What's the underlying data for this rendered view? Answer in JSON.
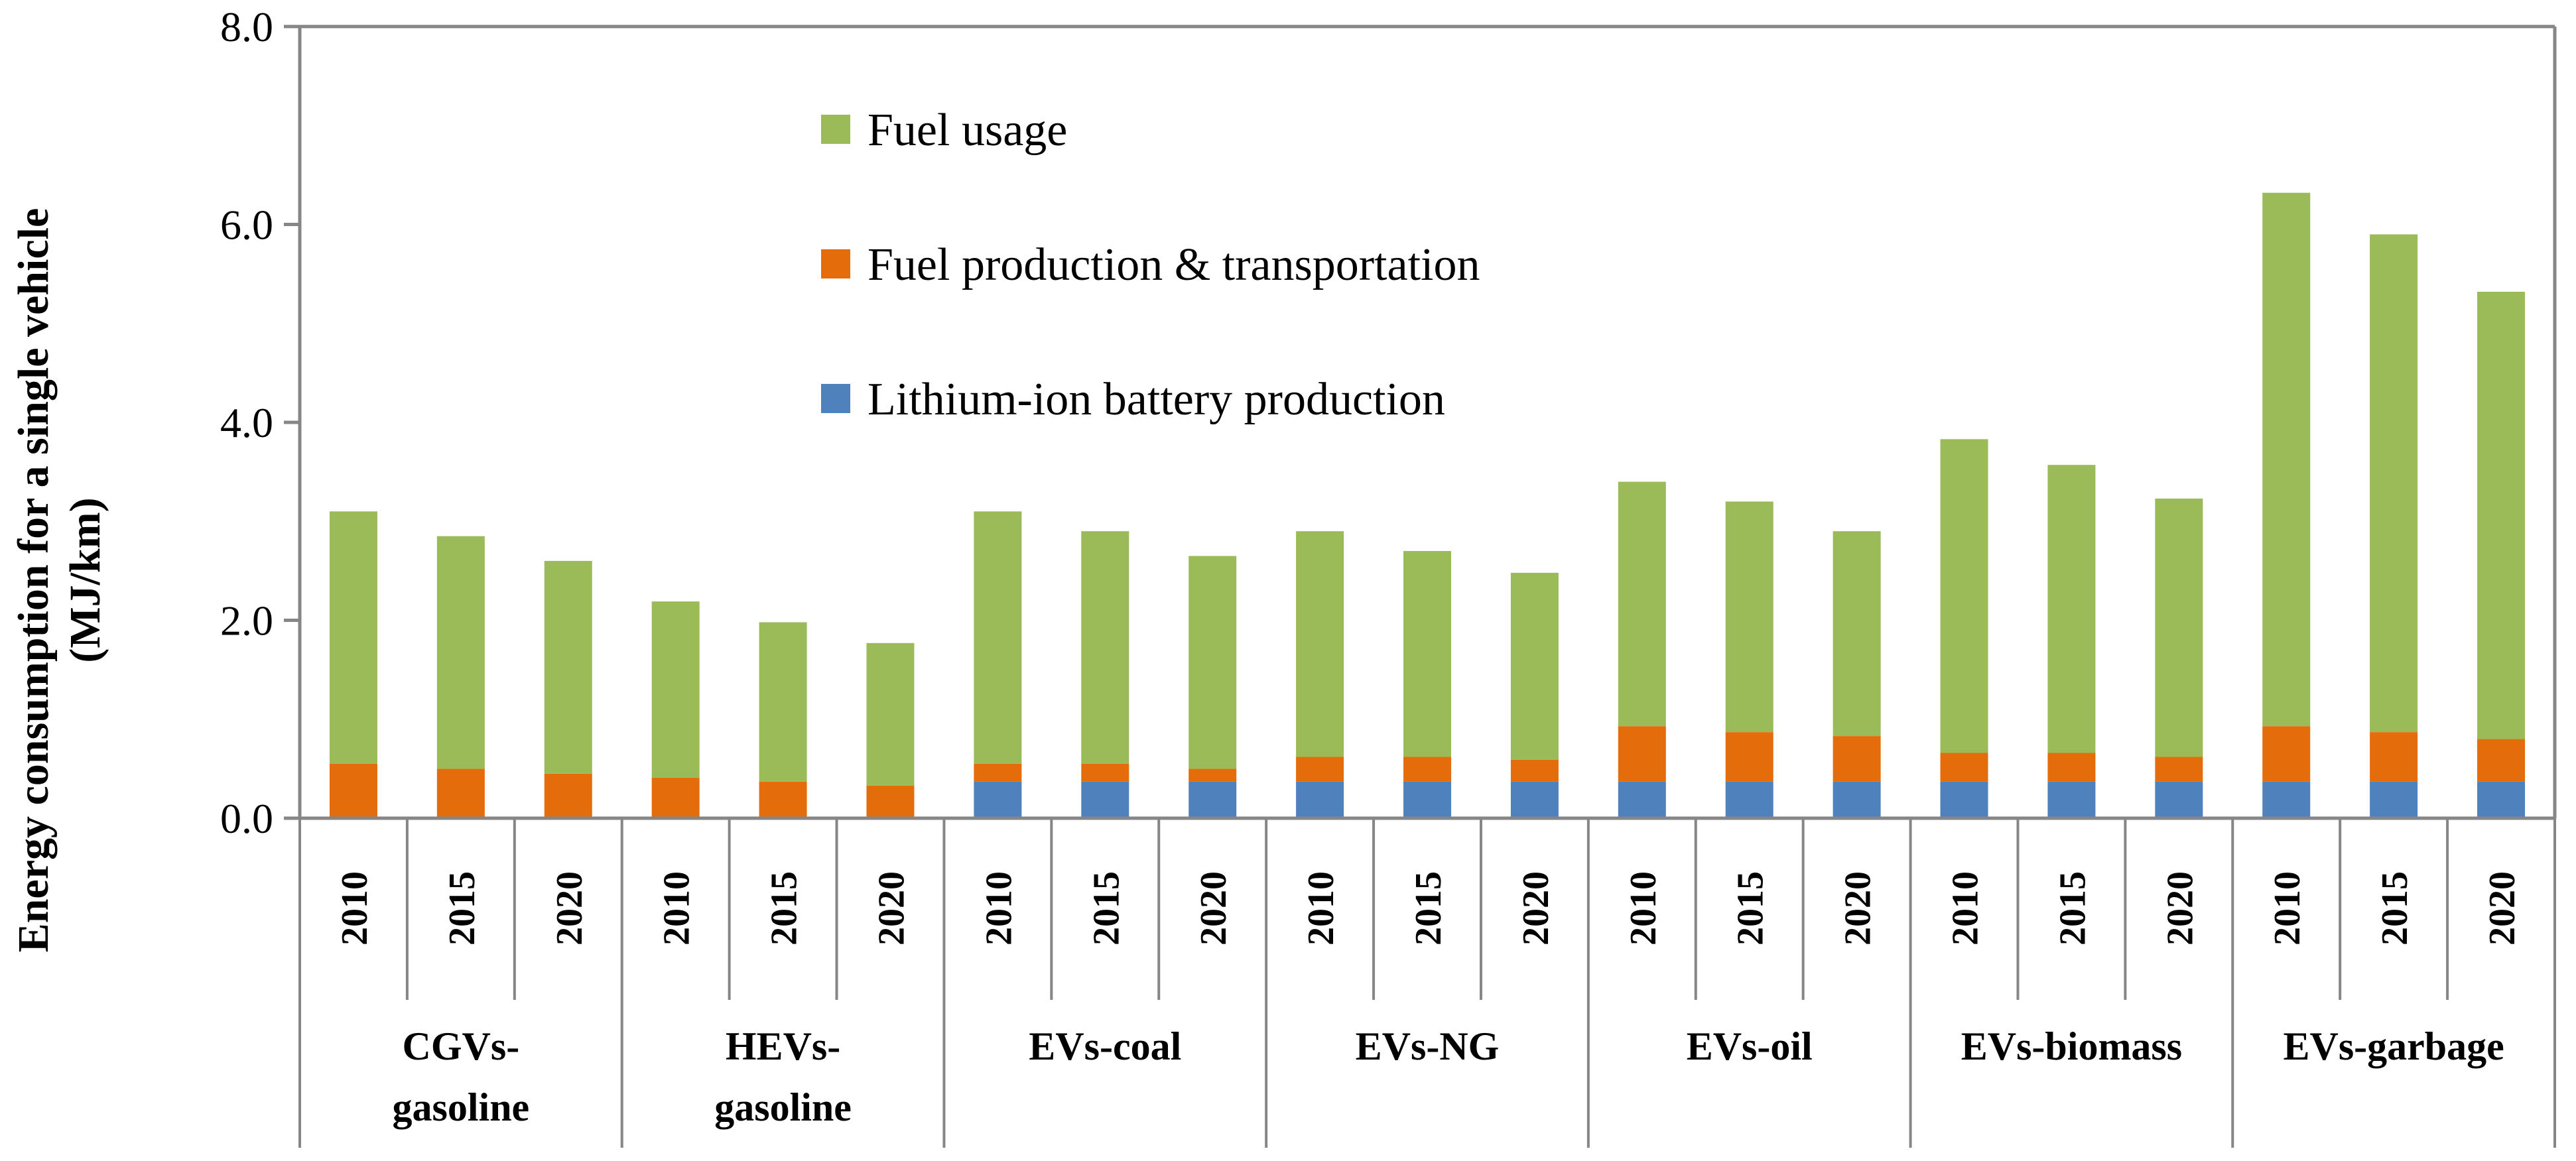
{
  "chart_data": {
    "type": "bar",
    "stacked": true,
    "ylabel": [
      "Energy consumption for a single vehicle",
      "(MJ/km)"
    ],
    "ylim": [
      0,
      8
    ],
    "yticks": [
      "0.0",
      "2.0",
      "4.0",
      "6.0",
      "8.0"
    ],
    "ytick_values": [
      0,
      2,
      4,
      6,
      8
    ],
    "legend_position": "top-center",
    "groups": [
      {
        "label": [
          "CGVs-",
          "gasoline"
        ],
        "years": [
          "2010",
          "2015",
          "2020"
        ]
      },
      {
        "label": [
          "HEVs-",
          "gasoline"
        ],
        "years": [
          "2010",
          "2015",
          "2020"
        ]
      },
      {
        "label": [
          "EVs-coal"
        ],
        "years": [
          "2010",
          "2015",
          "2020"
        ]
      },
      {
        "label": [
          "EVs-NG"
        ],
        "years": [
          "2010",
          "2015",
          "2020"
        ]
      },
      {
        "label": [
          "EVs-oil"
        ],
        "years": [
          "2010",
          "2015",
          "2020"
        ]
      },
      {
        "label": [
          "EVs-biomass"
        ],
        "years": [
          "2010",
          "2015",
          "2020"
        ]
      },
      {
        "label": [
          "EVs-garbage"
        ],
        "years": [
          "2010",
          "2015",
          "2020"
        ]
      }
    ],
    "series": [
      {
        "name": "Lithium-ion battery production",
        "color": "#4f81bd",
        "values": [
          0,
          0,
          0,
          0,
          0,
          0,
          0.37,
          0.37,
          0.37,
          0.37,
          0.37,
          0.37,
          0.37,
          0.37,
          0.37,
          0.37,
          0.37,
          0.37,
          0.37,
          0.37,
          0.37
        ]
      },
      {
        "name": "Fuel production & transportation",
        "color": "#e46c0a",
        "values": [
          0.55,
          0.5,
          0.45,
          0.41,
          0.37,
          0.33,
          0.18,
          0.18,
          0.13,
          0.25,
          0.25,
          0.22,
          0.56,
          0.5,
          0.46,
          0.29,
          0.29,
          0.25,
          0.56,
          0.5,
          0.43
        ]
      },
      {
        "name": "Fuel usage",
        "color": "#9bbb59",
        "values": [
          2.55,
          2.35,
          2.15,
          1.78,
          1.61,
          1.44,
          2.55,
          2.35,
          2.15,
          2.28,
          2.08,
          1.89,
          2.47,
          2.33,
          2.07,
          3.17,
          2.91,
          2.61,
          5.39,
          5.03,
          4.52
        ]
      }
    ],
    "legend_order": [
      "Fuel usage",
      "Fuel production & transportation",
      "Lithium-ion battery production"
    ]
  }
}
